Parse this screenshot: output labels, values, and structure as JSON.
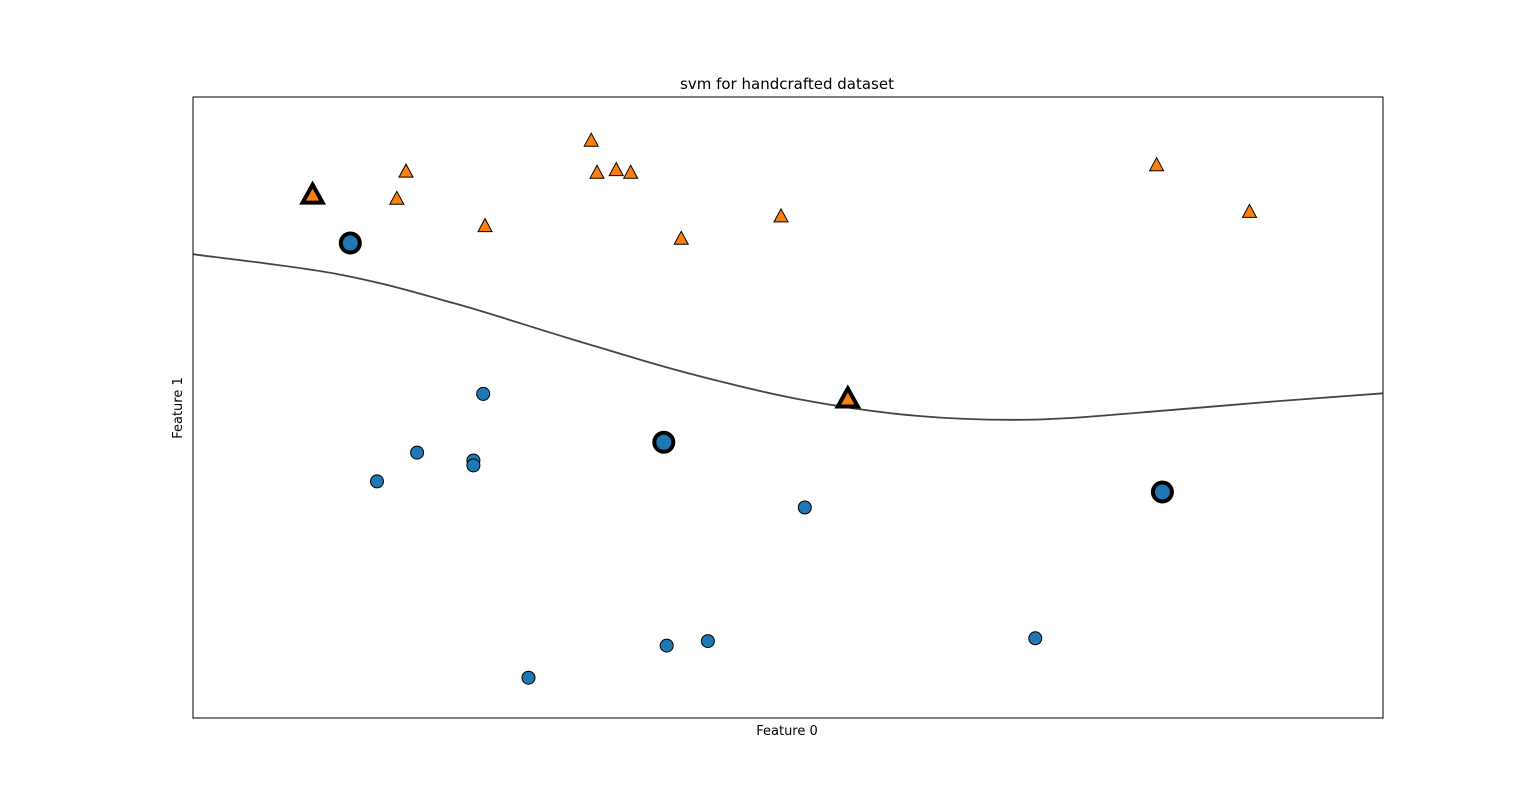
{
  "chart_data": {
    "type": "scatter",
    "title": "svm for handcrafted dataset",
    "xlabel": "Feature 0",
    "ylabel": "Feature 1",
    "xticks": [],
    "yticks": [],
    "xlim": [
      -5,
      200
    ],
    "ylim": [
      -5,
      200
    ],
    "grid": false,
    "legend": "none",
    "colors": {
      "class_0": "#1f77b4",
      "class_1": "#ff7f0e",
      "edge": "#000000",
      "decision_boundary": "#444444"
    },
    "series": [
      {
        "label_value": 0,
        "marker": "circle",
        "points": [
          {
            "x": 22.1,
            "y": 151.8,
            "support_vector": true
          },
          {
            "x": 45.0,
            "y": 102.0,
            "support_vector": false
          },
          {
            "x": 26.7,
            "y": 73.1,
            "support_vector": false
          },
          {
            "x": 33.6,
            "y": 82.6,
            "support_vector": false
          },
          {
            "x": 43.3,
            "y": 80.0,
            "support_vector": false
          },
          {
            "x": 43.3,
            "y": 78.4,
            "support_vector": false
          },
          {
            "x": 76.1,
            "y": 86.0,
            "support_vector": true
          },
          {
            "x": 100.4,
            "y": 64.5,
            "support_vector": false
          },
          {
            "x": 52.8,
            "y": 8.3,
            "support_vector": false
          },
          {
            "x": 76.6,
            "y": 18.9,
            "support_vector": false
          },
          {
            "x": 83.7,
            "y": 20.4,
            "support_vector": false
          },
          {
            "x": 140.1,
            "y": 21.3,
            "support_vector": false
          },
          {
            "x": 162.0,
            "y": 69.6,
            "support_vector": true
          }
        ]
      },
      {
        "label_value": 1,
        "marker": "triangle",
        "points": [
          {
            "x": 15.6,
            "y": 167.4,
            "support_vector": true
          },
          {
            "x": 30.1,
            "y": 166.2,
            "support_vector": false
          },
          {
            "x": 31.7,
            "y": 175.2,
            "support_vector": false
          },
          {
            "x": 45.3,
            "y": 157.2,
            "support_vector": false
          },
          {
            "x": 63.6,
            "y": 185.4,
            "support_vector": false
          },
          {
            "x": 64.6,
            "y": 174.8,
            "support_vector": false
          },
          {
            "x": 67.9,
            "y": 175.7,
            "support_vector": false
          },
          {
            "x": 70.4,
            "y": 174.8,
            "support_vector": false
          },
          {
            "x": 79.1,
            "y": 153.0,
            "support_vector": false
          },
          {
            "x": 96.3,
            "y": 160.4,
            "support_vector": false
          },
          {
            "x": 107.8,
            "y": 100.1,
            "support_vector": true
          },
          {
            "x": 161.0,
            "y": 177.3,
            "support_vector": false
          },
          {
            "x": 177.0,
            "y": 161.9,
            "support_vector": false
          }
        ]
      }
    ],
    "decision_boundary": [
      {
        "x": -5.0,
        "y": 148.1
      },
      {
        "x": 20.0,
        "y": 141.5
      },
      {
        "x": 40.0,
        "y": 131.9
      },
      {
        "x": 60.0,
        "y": 120.2
      },
      {
        "x": 80.0,
        "y": 109.0
      },
      {
        "x": 100.0,
        "y": 100.0
      },
      {
        "x": 120.0,
        "y": 94.7
      },
      {
        "x": 140.0,
        "y": 93.5
      },
      {
        "x": 160.0,
        "y": 96.1
      },
      {
        "x": 180.0,
        "y": 99.3
      },
      {
        "x": 200.0,
        "y": 102.2
      }
    ]
  }
}
